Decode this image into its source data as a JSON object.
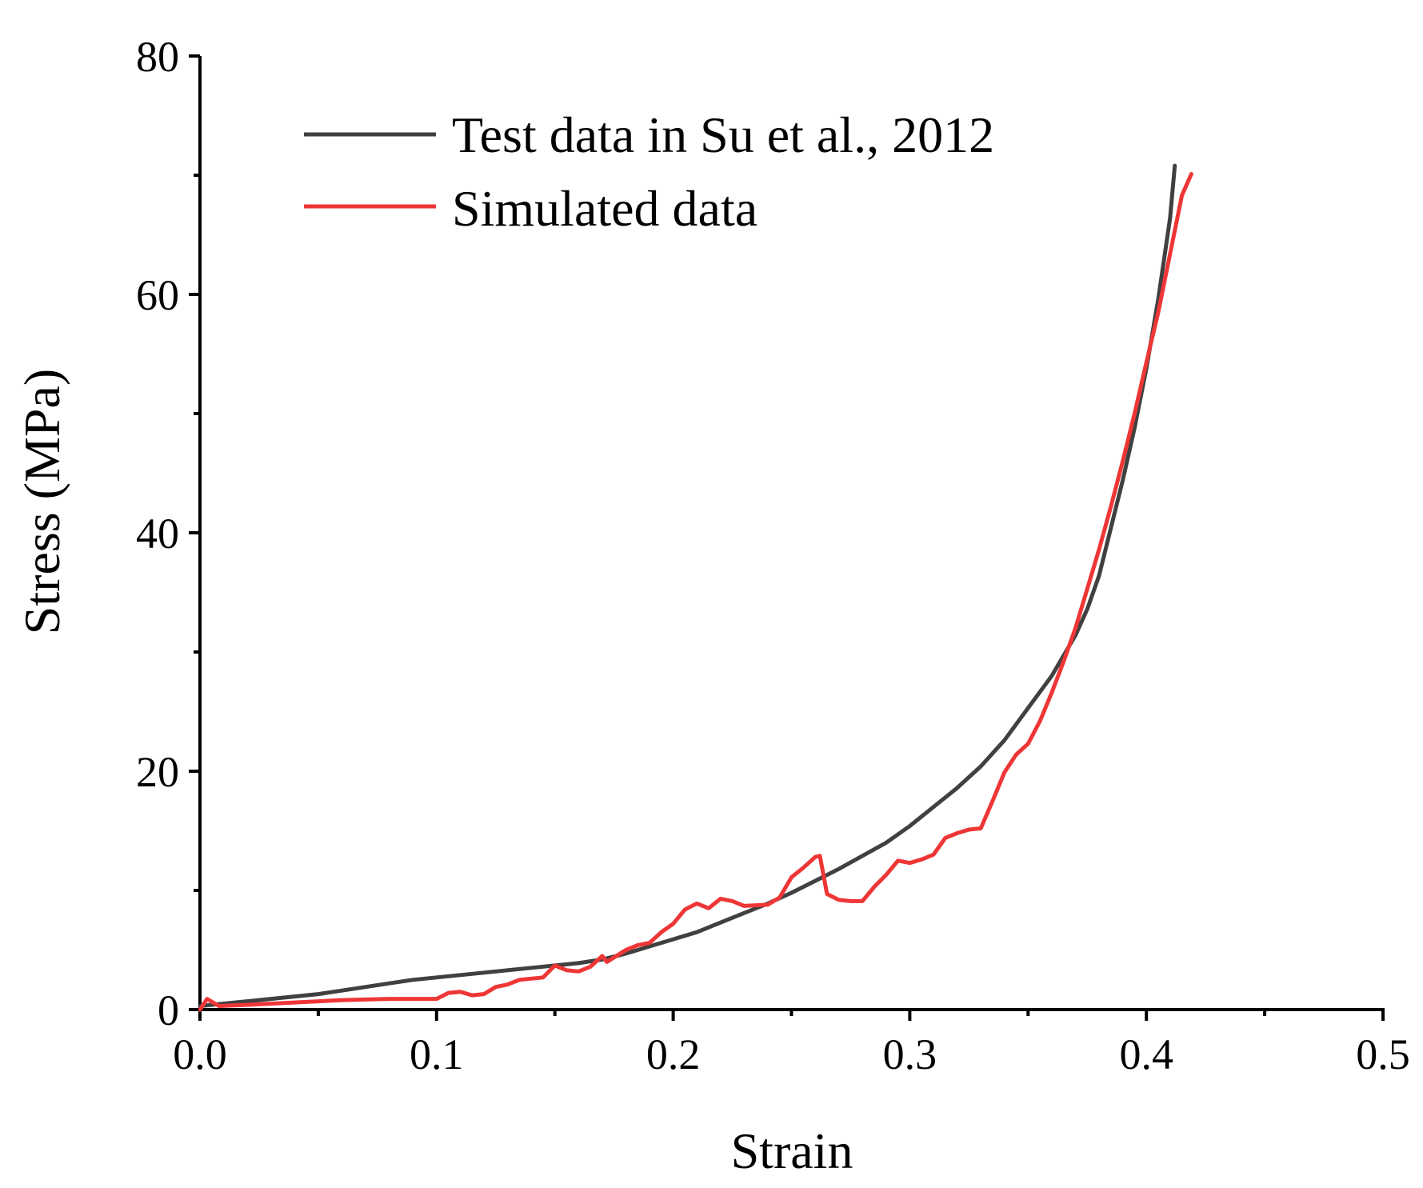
{
  "chart_data": {
    "type": "line",
    "title": "",
    "xlabel": "Strain",
    "ylabel": "Stress (MPa)",
    "xlim": [
      0,
      0.5
    ],
    "ylim": [
      0,
      80
    ],
    "x_major_ticks": [
      0,
      0.1,
      0.2,
      0.3,
      0.4,
      0.5
    ],
    "x_tick_labels": [
      "0.0",
      "0.1",
      "0.2",
      "0.3",
      "0.4",
      "0.5"
    ],
    "x_minor_ticks": [
      0.05,
      0.15,
      0.25,
      0.35,
      0.45
    ],
    "y_major_ticks": [
      0,
      20,
      40,
      60,
      80
    ],
    "y_tick_labels": [
      "0",
      "20",
      "40",
      "60",
      "80"
    ],
    "y_minor_ticks": [
      10,
      30,
      50,
      70
    ],
    "grid": false,
    "legend_position": "top-left",
    "series": [
      {
        "name": "Test data in Su et al., 2012",
        "color": "#404040",
        "points": [
          [
            0.0,
            0.3
          ],
          [
            0.01,
            0.5
          ],
          [
            0.02,
            0.7
          ],
          [
            0.03,
            0.9
          ],
          [
            0.04,
            1.1
          ],
          [
            0.05,
            1.3
          ],
          [
            0.06,
            1.6
          ],
          [
            0.07,
            1.9
          ],
          [
            0.08,
            2.2
          ],
          [
            0.09,
            2.5
          ],
          [
            0.1,
            2.7
          ],
          [
            0.11,
            2.9
          ],
          [
            0.12,
            3.1
          ],
          [
            0.13,
            3.3
          ],
          [
            0.14,
            3.5
          ],
          [
            0.15,
            3.7
          ],
          [
            0.16,
            3.9
          ],
          [
            0.17,
            4.2
          ],
          [
            0.18,
            4.7
          ],
          [
            0.19,
            5.3
          ],
          [
            0.2,
            5.9
          ],
          [
            0.21,
            6.5
          ],
          [
            0.22,
            7.3
          ],
          [
            0.23,
            8.1
          ],
          [
            0.24,
            8.9
          ],
          [
            0.25,
            9.8
          ],
          [
            0.26,
            10.8
          ],
          [
            0.27,
            11.8
          ],
          [
            0.28,
            12.9
          ],
          [
            0.29,
            14.0
          ],
          [
            0.3,
            15.4
          ],
          [
            0.31,
            17.0
          ],
          [
            0.32,
            18.6
          ],
          [
            0.33,
            20.4
          ],
          [
            0.34,
            22.6
          ],
          [
            0.35,
            25.3
          ],
          [
            0.36,
            28.0
          ],
          [
            0.37,
            31.4
          ],
          [
            0.375,
            33.6
          ],
          [
            0.38,
            36.4
          ],
          [
            0.385,
            40.4
          ],
          [
            0.39,
            44.4
          ],
          [
            0.395,
            48.8
          ],
          [
            0.4,
            53.8
          ],
          [
            0.405,
            59.6
          ],
          [
            0.41,
            66.4
          ],
          [
            0.412,
            70.8
          ]
        ]
      },
      {
        "name": "Simulated data",
        "color": "#ef3636",
        "points": [
          [
            0.0,
            0.0
          ],
          [
            0.003,
            0.9
          ],
          [
            0.008,
            0.3
          ],
          [
            0.02,
            0.4
          ],
          [
            0.04,
            0.6
          ],
          [
            0.06,
            0.8
          ],
          [
            0.08,
            0.9
          ],
          [
            0.1,
            0.9
          ],
          [
            0.105,
            1.4
          ],
          [
            0.11,
            1.5
          ],
          [
            0.115,
            1.2
          ],
          [
            0.12,
            1.3
          ],
          [
            0.125,
            1.9
          ],
          [
            0.13,
            2.1
          ],
          [
            0.135,
            2.5
          ],
          [
            0.14,
            2.6
          ],
          [
            0.145,
            2.7
          ],
          [
            0.15,
            3.7
          ],
          [
            0.155,
            3.3
          ],
          [
            0.16,
            3.2
          ],
          [
            0.165,
            3.6
          ],
          [
            0.17,
            4.5
          ],
          [
            0.172,
            4.0
          ],
          [
            0.18,
            5.0
          ],
          [
            0.185,
            5.4
          ],
          [
            0.19,
            5.6
          ],
          [
            0.195,
            6.5
          ],
          [
            0.2,
            7.2
          ],
          [
            0.205,
            8.4
          ],
          [
            0.21,
            8.9
          ],
          [
            0.215,
            8.5
          ],
          [
            0.22,
            9.3
          ],
          [
            0.225,
            9.1
          ],
          [
            0.23,
            8.7
          ],
          [
            0.24,
            8.8
          ],
          [
            0.245,
            9.4
          ],
          [
            0.25,
            11.1
          ],
          [
            0.255,
            11.9
          ],
          [
            0.26,
            12.8
          ],
          [
            0.262,
            12.9
          ],
          [
            0.265,
            9.7
          ],
          [
            0.27,
            9.2
          ],
          [
            0.275,
            9.1
          ],
          [
            0.28,
            9.1
          ],
          [
            0.285,
            10.3
          ],
          [
            0.29,
            11.3
          ],
          [
            0.295,
            12.5
          ],
          [
            0.3,
            12.3
          ],
          [
            0.305,
            12.6
          ],
          [
            0.31,
            13.0
          ],
          [
            0.315,
            14.4
          ],
          [
            0.32,
            14.8
          ],
          [
            0.325,
            15.1
          ],
          [
            0.33,
            15.2
          ],
          [
            0.335,
            17.5
          ],
          [
            0.34,
            19.9
          ],
          [
            0.345,
            21.4
          ],
          [
            0.35,
            22.3
          ],
          [
            0.355,
            24.2
          ],
          [
            0.36,
            26.6
          ],
          [
            0.365,
            29.2
          ],
          [
            0.37,
            32.0
          ],
          [
            0.375,
            35.3
          ],
          [
            0.38,
            38.6
          ],
          [
            0.385,
            42.2
          ],
          [
            0.39,
            46.0
          ],
          [
            0.395,
            50.0
          ],
          [
            0.4,
            54.3
          ],
          [
            0.405,
            58.5
          ],
          [
            0.41,
            63.4
          ],
          [
            0.415,
            68.3
          ],
          [
            0.419,
            70.1
          ]
        ]
      }
    ]
  }
}
